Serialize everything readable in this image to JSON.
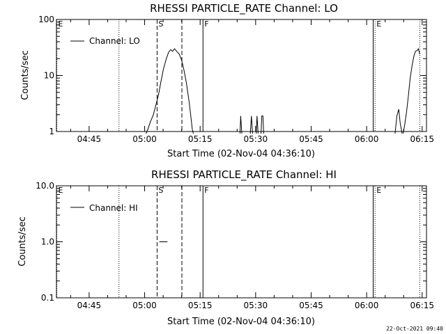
{
  "stamp": "22-Oct-2021 09:40",
  "chart_data": [
    {
      "type": "line",
      "title": "RHESSI PARTICLE_RATE Channel: LO",
      "xlabel": "Start Time (02-Nov-04 04:36:10)",
      "ylabel": "Counts/sec",
      "y_scale": "log",
      "ylim": [
        1,
        100
      ],
      "y_ticks": [
        {
          "value": 100,
          "label": "100"
        },
        {
          "value": 10,
          "label": "10"
        },
        {
          "value": 1,
          "label": "1"
        }
      ],
      "x_range_minutes": [
        0,
        100
      ],
      "x_ticks": [
        {
          "t": 8.83,
          "label": "04:45"
        },
        {
          "t": 23.83,
          "label": "05:00"
        },
        {
          "t": 38.83,
          "label": "05:15"
        },
        {
          "t": 53.83,
          "label": "05:30"
        },
        {
          "t": 68.83,
          "label": "05:45"
        },
        {
          "t": 83.83,
          "label": "06:00"
        },
        {
          "t": 98.83,
          "label": "06:15"
        }
      ],
      "legend": {
        "label": "Channel: LO",
        "position": "top-left"
      },
      "markers": [
        {
          "t": 0.1,
          "style": "dotted",
          "label": "E"
        },
        {
          "t": 16.9,
          "style": "dotted",
          "label": ""
        },
        {
          "t": 27.2,
          "style": "dashed",
          "label": "S"
        },
        {
          "t": 33.9,
          "style": "dashed",
          "label": ""
        },
        {
          "t": 39.6,
          "style": "solid",
          "label": "F"
        },
        {
          "t": 85.6,
          "style": "solid",
          "label": ""
        },
        {
          "t": 86.1,
          "style": "dotted",
          "label": "E"
        },
        {
          "t": 98.2,
          "style": "dotted",
          "label": ""
        }
      ],
      "series": [
        {
          "segments": [
            [
              [
                24.2,
                0.85
              ],
              [
                24.7,
                1.1
              ],
              [
                25.4,
                1.5
              ],
              [
                26.2,
                2.0
              ],
              [
                26.9,
                3.0
              ],
              [
                27.6,
                4.6
              ],
              [
                28.2,
                7.5
              ],
              [
                28.9,
                13
              ],
              [
                29.7,
                20
              ],
              [
                30.3,
                26
              ],
              [
                30.9,
                29
              ],
              [
                31.4,
                27
              ],
              [
                31.9,
                30
              ],
              [
                32.5,
                27
              ],
              [
                33.2,
                24
              ],
              [
                33.8,
                19
              ],
              [
                34.4,
                13
              ],
              [
                35.1,
                7.5
              ],
              [
                35.8,
                3.6
              ],
              [
                36.3,
                1.9
              ],
              [
                36.7,
                1.1
              ],
              [
                37.0,
                0.85
              ]
            ],
            [
              [
                49.6,
                0.85
              ],
              [
                49.8,
                1.9
              ],
              [
                50.1,
                0.85
              ]
            ],
            [
              [
                52.4,
                0.85
              ],
              [
                52.7,
                1.9
              ],
              [
                53.0,
                0.85
              ]
            ],
            [
              [
                54.0,
                0.85
              ],
              [
                54.2,
                1.9
              ],
              [
                54.5,
                0.85
              ]
            ],
            [
              [
                55.3,
                0.85
              ],
              [
                55.5,
                1.9
              ],
              [
                55.8,
                1.9
              ],
              [
                56.0,
                0.85
              ]
            ],
            [
              [
                91.5,
                0.85
              ],
              [
                92.0,
                1.9
              ],
              [
                92.5,
                2.5
              ],
              [
                92.9,
                1.4
              ],
              [
                93.4,
                0.85
              ]
            ],
            [
              [
                93.7,
                0.85
              ],
              [
                94.1,
                1.3
              ],
              [
                94.6,
                2.2
              ],
              [
                95.1,
                4.3
              ],
              [
                95.6,
                9
              ],
              [
                96.1,
                15
              ],
              [
                96.6,
                22
              ],
              [
                97.0,
                27
              ],
              [
                97.5,
                28
              ],
              [
                97.8,
                30
              ],
              [
                98.2,
                24
              ]
            ]
          ]
        }
      ]
    },
    {
      "type": "line",
      "title": "RHESSI PARTICLE_RATE Channel: HI",
      "xlabel": "Start Time (02-Nov-04 04:36:10)",
      "ylabel": "Counts/sec",
      "y_scale": "log",
      "ylim": [
        0.1,
        10
      ],
      "y_ticks": [
        {
          "value": 10,
          "label": "10.0"
        },
        {
          "value": 1,
          "label": "1.0"
        },
        {
          "value": 0.1,
          "label": "0.1"
        }
      ],
      "x_range_minutes": [
        0,
        100
      ],
      "x_ticks": [
        {
          "t": 8.83,
          "label": "04:45"
        },
        {
          "t": 23.83,
          "label": "05:00"
        },
        {
          "t": 38.83,
          "label": "05:15"
        },
        {
          "t": 53.83,
          "label": "05:30"
        },
        {
          "t": 68.83,
          "label": "05:45"
        },
        {
          "t": 83.83,
          "label": "06:00"
        },
        {
          "t": 98.83,
          "label": "06:15"
        }
      ],
      "legend": {
        "label": "Channel: HI",
        "position": "top-left"
      },
      "markers": [
        {
          "t": 0.1,
          "style": "dotted",
          "label": "E"
        },
        {
          "t": 16.9,
          "style": "dotted",
          "label": ""
        },
        {
          "t": 27.2,
          "style": "dashed",
          "label": "S"
        },
        {
          "t": 33.9,
          "style": "dashed",
          "label": ""
        },
        {
          "t": 39.6,
          "style": "solid",
          "label": "F"
        },
        {
          "t": 85.6,
          "style": "solid",
          "label": ""
        },
        {
          "t": 86.1,
          "style": "dotted",
          "label": "E"
        },
        {
          "t": 98.2,
          "style": "dotted",
          "label": ""
        }
      ],
      "series": [
        {
          "segments": [
            [
              [
                27.8,
                1.0
              ],
              [
                30.0,
                1.0
              ]
            ]
          ]
        }
      ]
    }
  ]
}
